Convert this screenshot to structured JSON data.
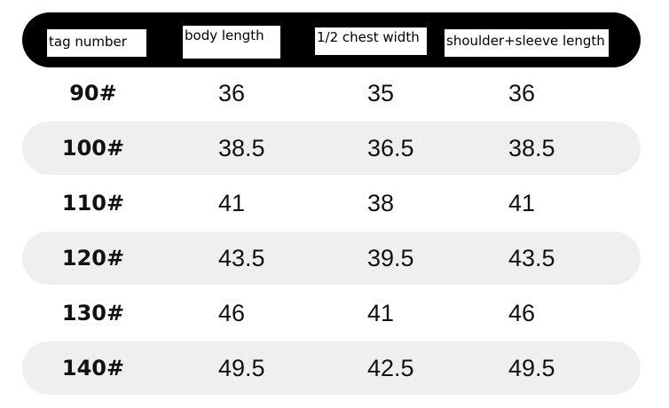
{
  "table": {
    "header": [
      "tag number",
      "body length",
      "1/2 chest width",
      "shoulder+sleeve length"
    ],
    "rows": [
      [
        "90#",
        36,
        35,
        36
      ],
      [
        "100#",
        38.5,
        36.5,
        38.5
      ],
      [
        "110#",
        41,
        38,
        41
      ],
      [
        "120#",
        43.5,
        39.5,
        43.5
      ],
      [
        "130#",
        46,
        41,
        46
      ],
      [
        "140#",
        49.5,
        42.5,
        49.5
      ]
    ]
  }
}
